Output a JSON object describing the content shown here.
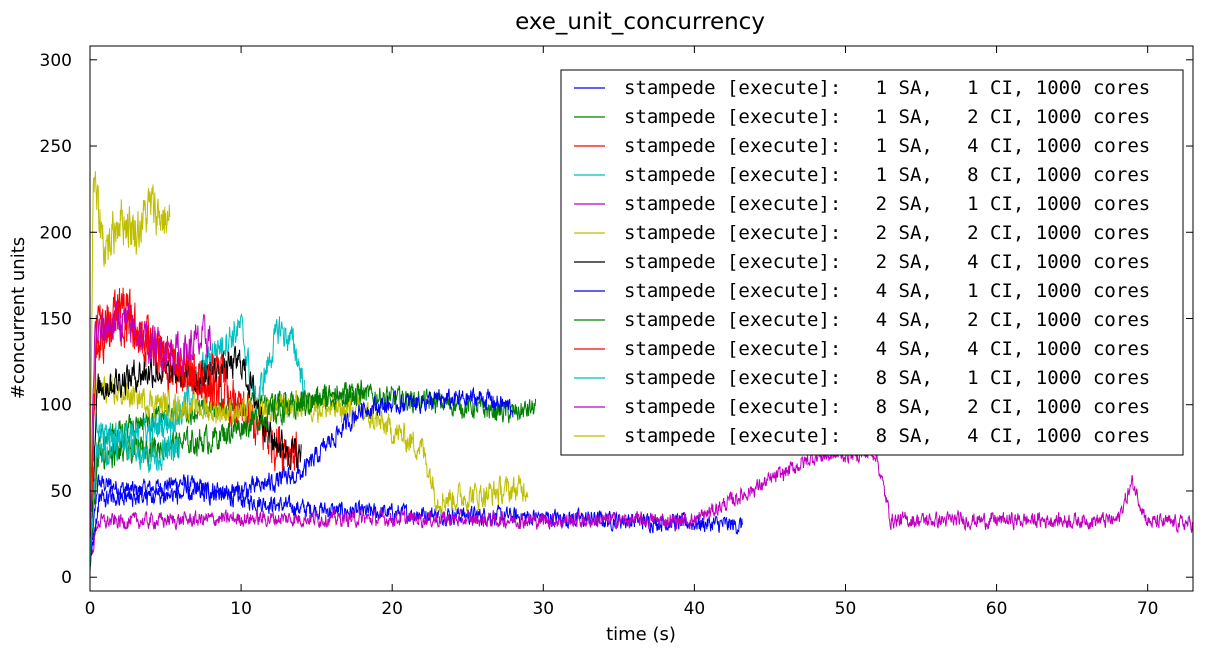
{
  "chart_data": {
    "type": "line",
    "title": "exe_unit_concurrency",
    "xlabel": "time (s)",
    "ylabel": "#concurrent units",
    "xlim": [
      0,
      73
    ],
    "ylim": [
      -8,
      308
    ],
    "xticks": [
      0,
      10,
      20,
      30,
      40,
      50,
      60,
      70
    ],
    "yticks": [
      0,
      50,
      100,
      150,
      200,
      250,
      300
    ],
    "grid": false,
    "legend_position": "top-right",
    "series": [
      {
        "name": "stampede [execute]:   1 SA,   1 CI, 1000 cores",
        "color": "#0000ff",
        "duration": 43.2,
        "levels": [
          [
            0,
            5
          ],
          [
            0.5,
            55
          ],
          [
            3,
            50
          ],
          [
            6,
            55
          ],
          [
            10,
            45
          ],
          [
            14,
            40
          ],
          [
            17,
            38
          ],
          [
            25,
            36
          ],
          [
            32,
            34
          ],
          [
            38,
            32
          ],
          [
            43.2,
            30
          ]
        ],
        "noise": 8
      },
      {
        "name": "stampede [execute]:   1 SA,   2 CI, 1000 cores",
        "color": "#008000",
        "duration": 29.5,
        "levels": [
          [
            0,
            8
          ],
          [
            0.6,
            80
          ],
          [
            3,
            90
          ],
          [
            6,
            95
          ],
          [
            10,
            100
          ],
          [
            14,
            102
          ],
          [
            18,
            106
          ],
          [
            24,
            100
          ],
          [
            28,
            95
          ],
          [
            29.5,
            98
          ]
        ],
        "noise": 10
      },
      {
        "name": "stampede [execute]:   1 SA,   4 CI, 1000 cores",
        "color": "#ff0000",
        "duration": 13.8,
        "levels": [
          [
            0,
            10
          ],
          [
            0.4,
            140
          ],
          [
            2,
            150
          ],
          [
            5,
            120
          ],
          [
            8,
            110
          ],
          [
            10,
            95
          ],
          [
            12,
            80
          ],
          [
            13.8,
            72
          ]
        ],
        "noise": 22
      },
      {
        "name": "stampede [execute]:   1 SA,   8 CI, 1000 cores",
        "color": "#00bfbf",
        "duration": 14.2,
        "levels": [
          [
            0,
            10
          ],
          [
            0.4,
            85
          ],
          [
            3,
            80
          ],
          [
            6,
            95
          ],
          [
            8,
            130
          ],
          [
            10,
            145
          ],
          [
            11,
            100
          ],
          [
            12.5,
            145
          ],
          [
            13.5,
            135
          ],
          [
            14.2,
            110
          ]
        ],
        "noise": 14
      },
      {
        "name": "stampede [execute]:   2 SA,   1 CI, 1000 cores",
        "color": "#bf00bf",
        "duration": 73,
        "levels": [
          [
            0,
            8
          ],
          [
            0.5,
            32
          ],
          [
            10,
            34
          ],
          [
            20,
            34
          ],
          [
            30,
            33
          ],
          [
            40,
            33
          ],
          [
            48,
            70
          ],
          [
            52,
            72
          ],
          [
            53,
            33
          ],
          [
            68,
            33
          ],
          [
            69,
            55
          ],
          [
            70,
            32
          ],
          [
            73,
            31
          ]
        ],
        "noise": 7
      },
      {
        "name": "stampede [execute]:   2 SA,   2 CI, 1000 cores",
        "color": "#bfbf00",
        "duration": 29,
        "levels": [
          [
            0,
            15
          ],
          [
            0.3,
            110
          ],
          [
            5,
            100
          ],
          [
            10,
            95
          ],
          [
            14,
            100
          ],
          [
            18,
            95
          ],
          [
            22,
            75
          ],
          [
            23,
            45
          ],
          [
            26,
            48
          ],
          [
            29,
            52
          ]
        ],
        "noise": 12
      },
      {
        "name": "stampede [execute]:   2 SA,   4 CI, 1000 cores",
        "color": "#000000",
        "duration": 14,
        "levels": [
          [
            0,
            10
          ],
          [
            0.5,
            110
          ],
          [
            4,
            120
          ],
          [
            7,
            115
          ],
          [
            10,
            125
          ],
          [
            12,
            80
          ],
          [
            14,
            70
          ]
        ],
        "noise": 14
      },
      {
        "name": "stampede [execute]:   4 SA,   1 CI, 1000 cores",
        "color": "#0000ff",
        "duration": 28,
        "levels": [
          [
            0,
            10
          ],
          [
            0.6,
            45
          ],
          [
            10,
            50
          ],
          [
            14,
            60
          ],
          [
            16,
            80
          ],
          [
            18,
            98
          ],
          [
            22,
            102
          ],
          [
            26,
            104
          ],
          [
            28,
            98
          ]
        ],
        "noise": 9
      },
      {
        "name": "stampede [execute]:   4 SA,   2 CI, 1000 cores",
        "color": "#008000",
        "duration": 18,
        "levels": [
          [
            0,
            10
          ],
          [
            0.5,
            70
          ],
          [
            4,
            75
          ],
          [
            8,
            80
          ],
          [
            12,
            95
          ],
          [
            16,
            105
          ],
          [
            18,
            108
          ]
        ],
        "noise": 12
      },
      {
        "name": "stampede [execute]:   4 SA,   4 CI, 1000 cores",
        "color": "#ff0000",
        "duration": 9,
        "levels": [
          [
            0,
            15
          ],
          [
            0.4,
            130
          ],
          [
            2,
            160
          ],
          [
            4,
            135
          ],
          [
            7,
            115
          ],
          [
            9,
            120
          ]
        ],
        "noise": 20
      },
      {
        "name": "stampede [execute]:   8 SA,   1 CI, 1000 cores",
        "color": "#00bfbf",
        "duration": 6,
        "levels": [
          [
            0,
            10
          ],
          [
            0.4,
            70
          ],
          [
            2,
            80
          ],
          [
            4,
            70
          ],
          [
            6,
            75
          ]
        ],
        "noise": 14
      },
      {
        "name": "stampede [execute]:   8 SA,   2 CI, 1000 cores",
        "color": "#bf00bf",
        "duration": 8,
        "levels": [
          [
            0,
            20
          ],
          [
            0.3,
            140
          ],
          [
            2,
            150
          ],
          [
            4,
            135
          ],
          [
            6,
            130
          ],
          [
            8,
            140
          ]
        ],
        "noise": 18
      },
      {
        "name": "stampede [execute]:   8 SA,   4 CI, 1000 cores",
        "color": "#bfbf00",
        "duration": 5.3,
        "levels": [
          [
            0,
            30
          ],
          [
            0.2,
            230
          ],
          [
            1,
            190
          ],
          [
            2,
            210
          ],
          [
            3,
            200
          ],
          [
            4,
            215
          ],
          [
            5.3,
            205
          ]
        ],
        "noise": 22
      }
    ]
  }
}
